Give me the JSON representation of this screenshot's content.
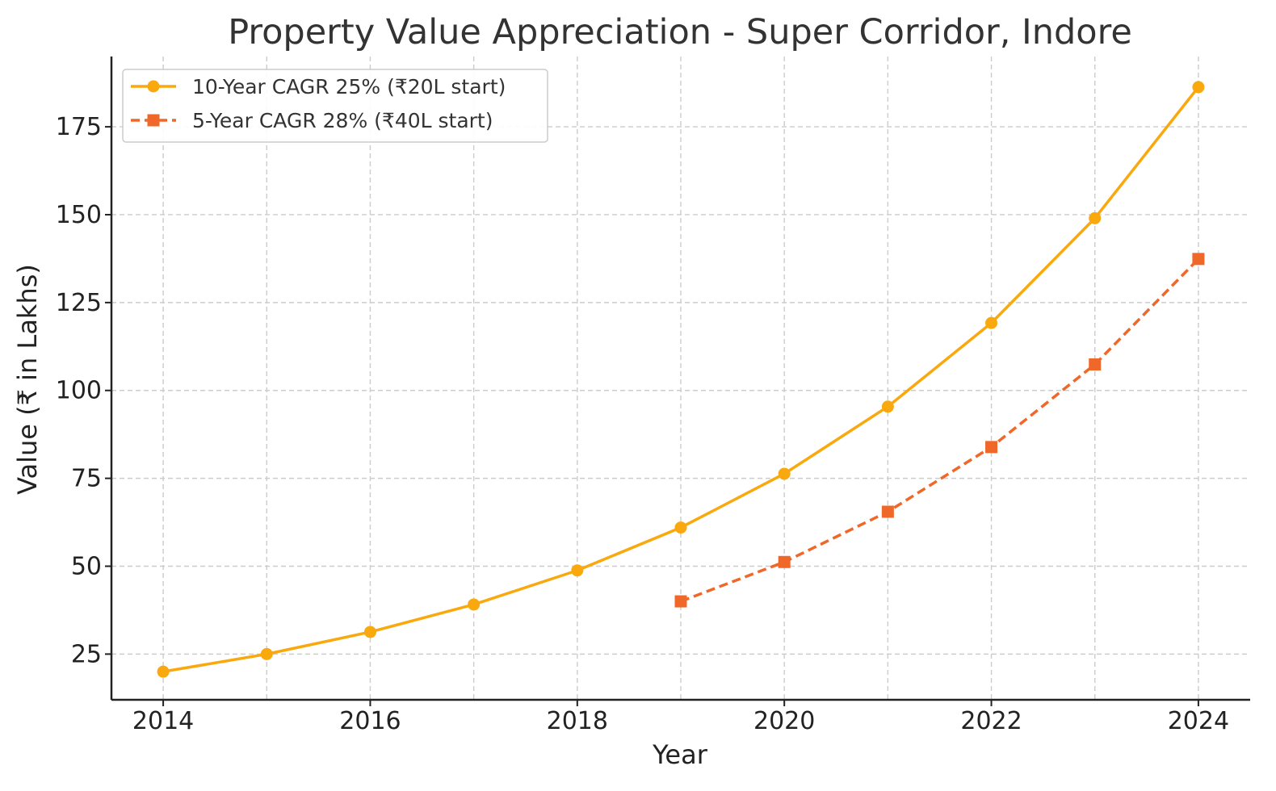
{
  "chart_data": {
    "type": "line",
    "title": "Property Value Appreciation - Super Corridor, Indore",
    "xlabel": "Year",
    "ylabel": "Value (₹ in Lakhs)",
    "xlim": [
      2013.5,
      2024.5
    ],
    "ylim": [
      12,
      195
    ],
    "xticks": [
      2014,
      2016,
      2018,
      2020,
      2022,
      2024
    ],
    "yticks": [
      25,
      50,
      75,
      100,
      125,
      150,
      175
    ],
    "grid": true,
    "legend_position": "top-left",
    "series": [
      {
        "name": "10-Year CAGR 25% (₹20L start)",
        "color": "#F9A90E",
        "line_style": "solid",
        "marker": "circle",
        "x": [
          2014,
          2015,
          2016,
          2017,
          2018,
          2019,
          2020,
          2021,
          2022,
          2023,
          2024
        ],
        "y": [
          20,
          25,
          31.3,
          39.1,
          48.8,
          61.0,
          76.3,
          95.4,
          119.2,
          149.0,
          186.3
        ]
      },
      {
        "name": "5-Year CAGR 28% (₹40L start)",
        "color": "#F0672A",
        "line_style": "dashed",
        "marker": "square",
        "x": [
          2019,
          2020,
          2021,
          2022,
          2023,
          2024
        ],
        "y": [
          40,
          51.2,
          65.5,
          83.9,
          107.4,
          137.4
        ]
      }
    ]
  }
}
